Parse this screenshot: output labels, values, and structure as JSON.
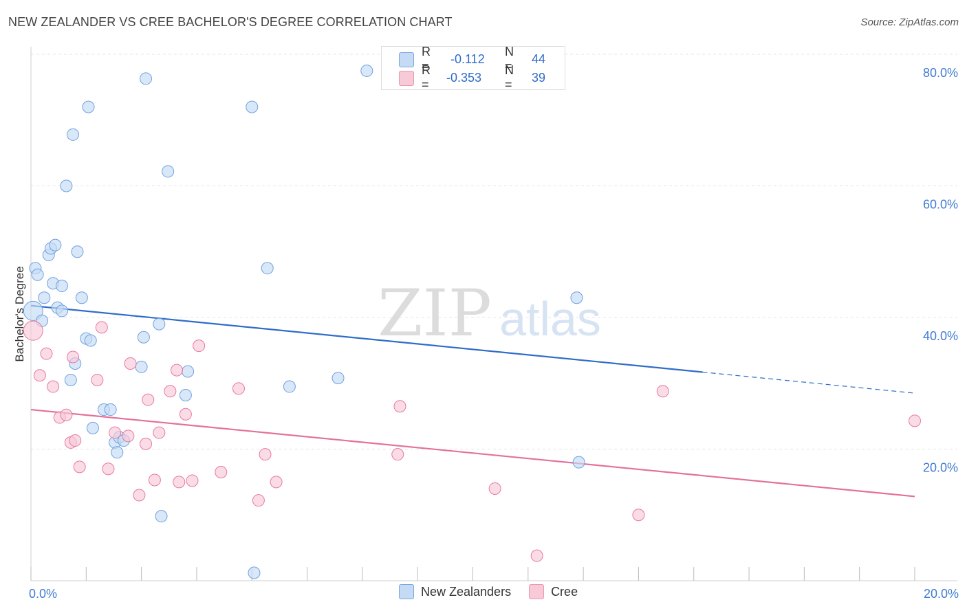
{
  "title": "NEW ZEALANDER VS CREE BACHELOR'S DEGREE CORRELATION CHART",
  "source": "Source: ZipAtlas.com",
  "watermark": {
    "zip": "ZIP",
    "atlas": "atlas"
  },
  "legend_stats": [
    {
      "r_label": "R =",
      "r_value": "-0.112",
      "n_label": "N =",
      "n_value": "44",
      "color": "#a8c8f0"
    },
    {
      "r_label": "R =",
      "r_value": "-0.353",
      "n_label": "N =",
      "n_value": "39",
      "color": "#f5b8cb"
    }
  ],
  "legend_bottom": [
    {
      "label": "New Zealanders",
      "color": "#a8c8f0"
    },
    {
      "label": "Cree",
      "color": "#f5b8cb"
    }
  ],
  "chart_data": {
    "type": "scatter",
    "title": "NEW ZEALANDER VS CREE BACHELOR'S DEGREE CORRELATION CHART",
    "xlabel": "",
    "ylabel": "Bachelor's Degree",
    "xlim": [
      0,
      20
    ],
    "ylim": [
      0,
      80
    ],
    "x_tick_labels": [
      {
        "value": 0,
        "label": "0.0%"
      },
      {
        "value": 20,
        "label": "20.0%"
      }
    ],
    "y_tick_labels": [
      {
        "value": 20,
        "label": "20.0%"
      },
      {
        "value": 40,
        "label": "40.0%"
      },
      {
        "value": 60,
        "label": "60.0%"
      },
      {
        "value": 80,
        "label": "80.0%"
      }
    ],
    "grid": true,
    "series": [
      {
        "name": "New Zealanders",
        "color": "#6fa0e0",
        "fill": "#c5dbf5",
        "trend": {
          "x0": 0,
          "y0": 41.8,
          "x1": 15.2,
          "y1": 31.7,
          "dash_to_x": 20,
          "dash_to_y": 28.5
        },
        "points": [
          [
            0.05,
            41.0
          ],
          [
            0.1,
            47.5
          ],
          [
            0.15,
            46.5
          ],
          [
            0.25,
            39.5
          ],
          [
            0.3,
            43.0
          ],
          [
            0.4,
            49.5
          ],
          [
            0.45,
            50.5
          ],
          [
            0.5,
            45.2
          ],
          [
            0.55,
            51.0
          ],
          [
            0.6,
            41.5
          ],
          [
            0.7,
            41.0
          ],
          [
            0.7,
            44.8
          ],
          [
            0.8,
            60.0
          ],
          [
            0.9,
            30.5
          ],
          [
            0.95,
            67.8
          ],
          [
            1.0,
            33.0
          ],
          [
            1.05,
            50.0
          ],
          [
            1.15,
            43.0
          ],
          [
            1.25,
            36.8
          ],
          [
            1.3,
            72.0
          ],
          [
            1.35,
            36.5
          ],
          [
            1.4,
            23.2
          ],
          [
            1.65,
            26.0
          ],
          [
            1.8,
            26.0
          ],
          [
            1.9,
            21.0
          ],
          [
            1.95,
            19.5
          ],
          [
            2.0,
            21.8
          ],
          [
            2.1,
            21.3
          ],
          [
            2.5,
            32.5
          ],
          [
            2.55,
            37.0
          ],
          [
            2.6,
            76.3
          ],
          [
            2.9,
            39.0
          ],
          [
            2.95,
            9.8
          ],
          [
            3.1,
            62.2
          ],
          [
            3.5,
            28.2
          ],
          [
            3.55,
            31.8
          ],
          [
            5.0,
            72.0
          ],
          [
            5.05,
            1.2
          ],
          [
            5.35,
            47.5
          ],
          [
            5.85,
            29.5
          ],
          [
            6.95,
            30.8
          ],
          [
            7.6,
            77.5
          ],
          [
            12.35,
            43.0
          ],
          [
            12.4,
            18.0
          ]
        ]
      },
      {
        "name": "Cree",
        "color": "#e8799e",
        "fill": "#f8cad8",
        "trend": {
          "x0": 0,
          "y0": 26.0,
          "x1": 20,
          "y1": 12.8
        },
        "points": [
          [
            0.05,
            38.0
          ],
          [
            0.2,
            31.2
          ],
          [
            0.35,
            34.5
          ],
          [
            0.5,
            29.5
          ],
          [
            0.65,
            24.8
          ],
          [
            0.8,
            25.2
          ],
          [
            0.9,
            21.0
          ],
          [
            0.95,
            34.0
          ],
          [
            1.0,
            21.3
          ],
          [
            1.1,
            17.3
          ],
          [
            1.5,
            30.5
          ],
          [
            1.6,
            38.5
          ],
          [
            1.75,
            17.0
          ],
          [
            1.9,
            22.5
          ],
          [
            2.2,
            22.0
          ],
          [
            2.25,
            33.0
          ],
          [
            2.45,
            13.0
          ],
          [
            2.6,
            20.8
          ],
          [
            2.65,
            27.5
          ],
          [
            2.8,
            15.3
          ],
          [
            2.9,
            22.5
          ],
          [
            3.15,
            28.8
          ],
          [
            3.3,
            32.0
          ],
          [
            3.35,
            15.0
          ],
          [
            3.5,
            25.3
          ],
          [
            3.65,
            15.2
          ],
          [
            3.8,
            35.7
          ],
          [
            4.3,
            16.5
          ],
          [
            4.7,
            29.2
          ],
          [
            5.15,
            12.2
          ],
          [
            5.3,
            19.2
          ],
          [
            5.55,
            15.0
          ],
          [
            8.35,
            26.5
          ],
          [
            8.3,
            19.2
          ],
          [
            10.5,
            14.0
          ],
          [
            11.45,
            3.8
          ],
          [
            13.75,
            10.0
          ],
          [
            14.3,
            28.8
          ],
          [
            20.0,
            24.3
          ]
        ]
      }
    ]
  }
}
